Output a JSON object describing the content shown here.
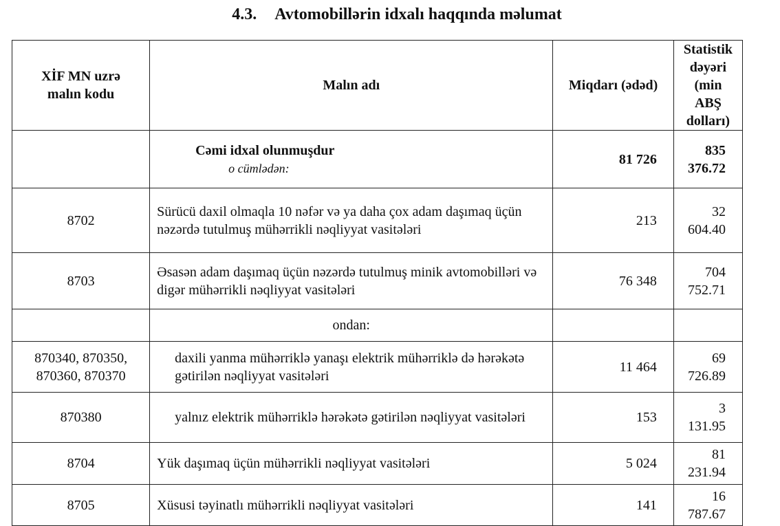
{
  "title": {
    "number": "4.3.",
    "text": "Avtomobillərin idxalı haqqında məlumat"
  },
  "headers": [
    "XİF MN uzrə malın kodu",
    "Malın adı",
    "Miqdarı (ədəd)",
    "Statistik dəyəri (min ABŞ dolları)"
  ],
  "total": {
    "code": "",
    "name": "Cəmi idxal olunmuşdur",
    "sub": "o cümlədən:",
    "qty": "81 726",
    "value": "835 376.72"
  },
  "rows": [
    {
      "code": "8702",
      "name": "Sürücü daxil olmaqla 10 nəfər və ya daha çox adam daşımaq üçün nəzərdə tutulmuş mühərrikli nəqliyyat vasitələri",
      "qty": "213",
      "value": "32 604.40"
    },
    {
      "code": "8703",
      "name": "Əsasən adam daşımaq üçün nəzərdə tutulmuş minik avtomobilləri və digər mühərrikli nəqliyyat vasitələri",
      "qty": "76 348",
      "value": "704 752.71"
    },
    {
      "code": "",
      "name": "ondan:",
      "qty": "",
      "value": ""
    },
    {
      "code": "870340, 870350, 870360, 870370",
      "name": "daxili yanma mühərriklə yanaşı elektrik mühərriklə də hərəkətə gətirilən nəqliyyat vasitələri",
      "qty": "11 464",
      "value": "69 726.89"
    },
    {
      "code": "870380",
      "name": "yalnız elektrik mühərriklə hərəkətə gətirilən nəqliyyat vasitələri",
      "qty": "153",
      "value": "3 131.95"
    },
    {
      "code": "8704",
      "name": "Yük daşımaq üçün mühərrikli nəqliyyat vasitələri",
      "qty": "5 024",
      "value": "81 231.94"
    },
    {
      "code": "8705",
      "name": "Xüsusi təyinatlı mühərrikli nəqliyyat vasitələri",
      "qty": "141",
      "value": "16 787.67"
    }
  ]
}
